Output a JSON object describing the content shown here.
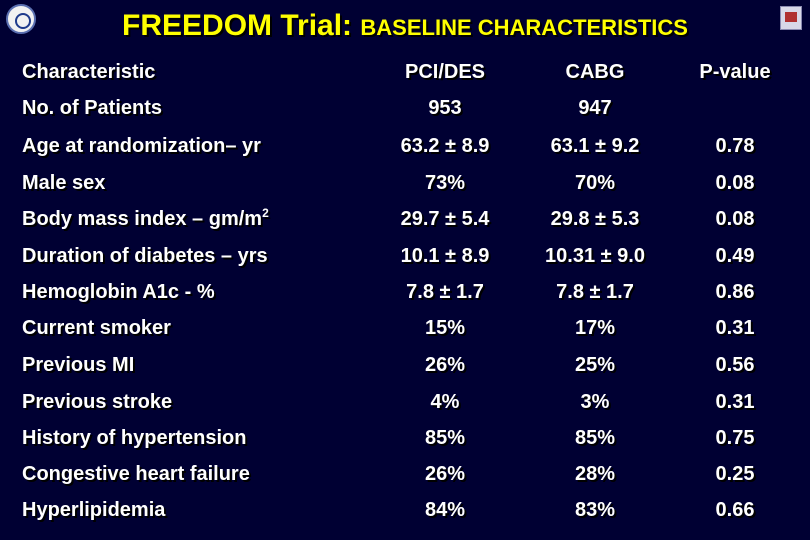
{
  "title": {
    "main": "FREEDOM Trial:",
    "sub": "BASELINE CHARACTERISTICS"
  },
  "colors": {
    "background": "#000033",
    "title": "#ffff00",
    "text": "#ffffff"
  },
  "table": {
    "headers": [
      "Characteristic",
      "PCI/DES",
      "CABG",
      "P-value"
    ],
    "rows": [
      {
        "label": "No. of Patients",
        "pci": "953",
        "cabg": "947",
        "p": ""
      },
      {
        "label": "Age at randomization– yr",
        "pci": "63.2 ± 8.9",
        "cabg": "63.1 ± 9.2",
        "p": "0.78"
      },
      {
        "label": "Male sex",
        "pci": "73%",
        "cabg": "70%",
        "p": "0.08"
      },
      {
        "label": "Body mass index – gm/m",
        "label_sup": "2",
        "pci": "29.7 ± 5.4",
        "cabg": "29.8 ± 5.3",
        "p": "0.08"
      },
      {
        "label": "Duration of diabetes – yrs",
        "pci": "10.1 ± 8.9",
        "cabg": "10.31 ± 9.0",
        "p": "0.49"
      },
      {
        "label": "Hemoglobin A1c - %",
        "pci": "7.8 ± 1.7",
        "cabg": "7.8 ± 1.7",
        "p": "0.86"
      },
      {
        "label": "Current smoker",
        "pci": "15%",
        "cabg": "17%",
        "p": "0.31"
      },
      {
        "label": "Previous MI",
        "pci": "26%",
        "cabg": "25%",
        "p": "0.56"
      },
      {
        "label": "Previous stroke",
        "pci": "4%",
        "cabg": "3%",
        "p": "0.31"
      },
      {
        "label": "History of hypertension",
        "pci": "85%",
        "cabg": "85%",
        "p": "0.75"
      },
      {
        "label": "Congestive heart failure",
        "pci": "26%",
        "cabg": "28%",
        "p": "0.25"
      },
      {
        "label": "Hyperlipidemia",
        "pci": "84%",
        "cabg": "83%",
        "p": "0.66"
      }
    ]
  }
}
